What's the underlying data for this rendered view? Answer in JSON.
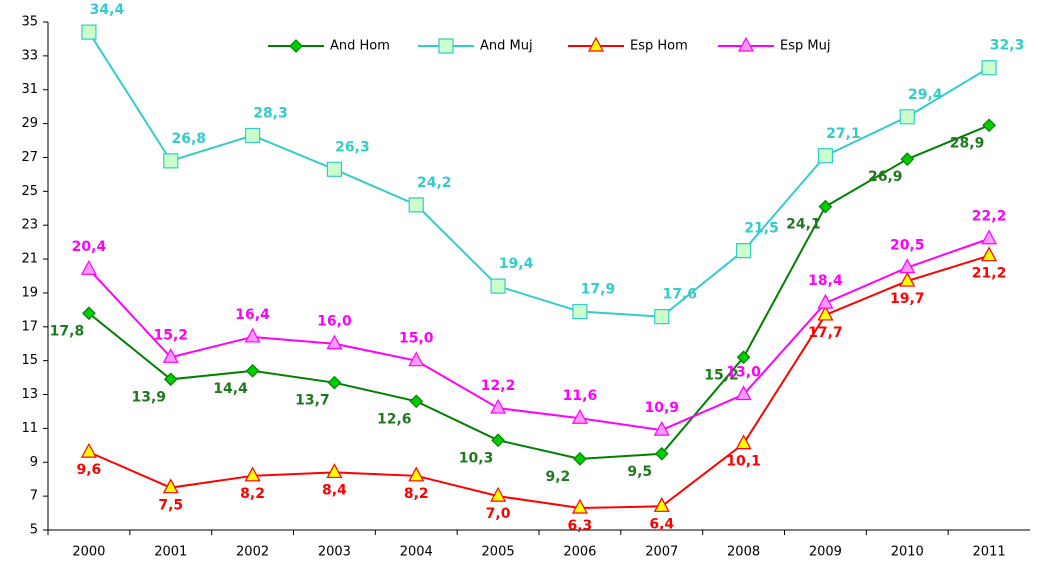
{
  "chart_data": {
    "type": "line",
    "categories": [
      "2000",
      "2001",
      "2002",
      "2003",
      "2004",
      "2005",
      "2006",
      "2007",
      "2008",
      "2009",
      "2010",
      "2011"
    ],
    "ylim": [
      5,
      35
    ],
    "yticks": [
      5,
      7,
      9,
      11,
      13,
      15,
      17,
      19,
      21,
      23,
      25,
      27,
      29,
      31,
      33,
      35
    ],
    "grid": false,
    "legend": "top",
    "series": [
      {
        "name": "And Hom",
        "color": "#008000",
        "marker": "diamond",
        "marker_fill": "#00cc00",
        "values": [
          17.8,
          13.9,
          14.4,
          13.7,
          12.6,
          10.3,
          9.2,
          9.5,
          15.2,
          24.1,
          26.9,
          28.9
        ],
        "value_labels": [
          "17,8",
          "13,9",
          "14,4",
          "13,7",
          "12,6",
          "10,3",
          "9,2",
          "9,5",
          "15,2",
          "24,1",
          "26,9",
          "28,9"
        ]
      },
      {
        "name": "And Muj",
        "color": "#33cccc",
        "marker": "square",
        "marker_fill": "#ccffcc",
        "values": [
          34.4,
          26.8,
          28.3,
          26.3,
          24.2,
          19.4,
          17.9,
          17.6,
          21.5,
          27.1,
          29.4,
          32.3
        ],
        "value_labels": [
          "34,4",
          "26,8",
          "28,3",
          "26,3",
          "24,2",
          "19,4",
          "17,9",
          "17,6",
          "21,5",
          "27,1",
          "29,4",
          "32,3"
        ]
      },
      {
        "name": "Esp Hom",
        "color": "#ff0000",
        "marker": "triangle",
        "marker_fill": "#ffff00",
        "values": [
          9.6,
          7.5,
          8.2,
          8.4,
          8.2,
          7.0,
          6.3,
          6.4,
          10.1,
          17.7,
          19.7,
          21.2
        ],
        "value_labels": [
          "9,6",
          "7,5",
          "8,2",
          "8,4",
          "8,2",
          "7,0",
          "6,3",
          "6,4",
          "10,1",
          "17,7",
          "19,7",
          "21,2"
        ]
      },
      {
        "name": "Esp Muj",
        "color": "#ff00ff",
        "marker": "triangle",
        "marker_fill": "#ff99ff",
        "values": [
          20.4,
          15.2,
          16.4,
          16.0,
          15.0,
          12.2,
          11.6,
          10.9,
          13.0,
          18.4,
          20.5,
          22.2
        ],
        "value_labels": [
          "20,4",
          "15,2",
          "16,4",
          "16,0",
          "15,0",
          "12,2",
          "11,6",
          "10,9",
          "13,0",
          "18,4",
          "20,5",
          "22,2"
        ]
      }
    ]
  }
}
